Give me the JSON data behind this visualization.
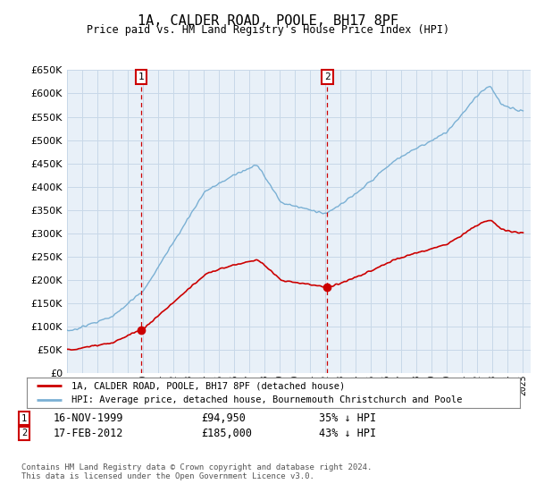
{
  "title": "1A, CALDER ROAD, POOLE, BH17 8PF",
  "subtitle": "Price paid vs. HM Land Registry's House Price Index (HPI)",
  "ylim": [
    0,
    650000
  ],
  "yticks": [
    0,
    50000,
    100000,
    150000,
    200000,
    250000,
    300000,
    350000,
    400000,
    450000,
    500000,
    550000,
    600000,
    650000
  ],
  "hpi_color": "#7ab0d4",
  "price_color": "#cc0000",
  "vline_color": "#cc0000",
  "grid_color": "#c8d8e8",
  "bg_color": "#e8f0f8",
  "purchase1_date": "16-NOV-1999",
  "purchase1_price": 94950,
  "purchase1_label": "35% ↓ HPI",
  "purchase2_date": "17-FEB-2012",
  "purchase2_price": 185000,
  "purchase2_label": "43% ↓ HPI",
  "legend_line1": "1A, CALDER ROAD, POOLE, BH17 8PF (detached house)",
  "legend_line2": "HPI: Average price, detached house, Bournemouth Christchurch and Poole",
  "footer": "Contains HM Land Registry data © Crown copyright and database right 2024.\nThis data is licensed under the Open Government Licence v3.0.",
  "xmin": 1995.0,
  "xmax": 2025.5,
  "t1_year": 1999.875,
  "t2_year": 2012.125
}
